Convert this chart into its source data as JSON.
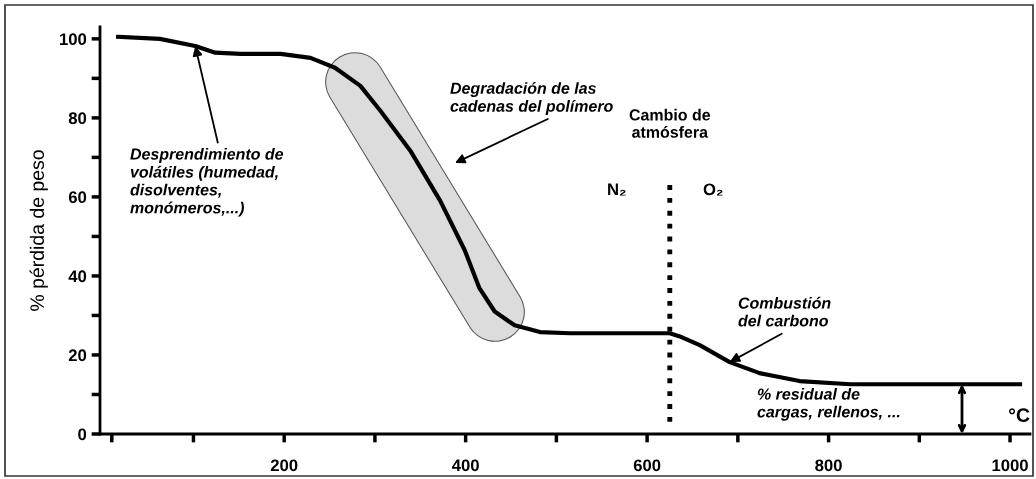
{
  "chart_data": {
    "type": "line",
    "xlabel": "°C",
    "ylabel": "% pérdida de peso",
    "x": [
      17,
      63,
      102,
      124,
      152,
      196,
      229,
      256,
      284,
      306,
      339,
      372,
      399,
      415,
      432,
      454,
      482,
      515,
      578,
      625,
      636,
      658,
      691,
      724,
      768,
      824,
      1011
    ],
    "series": [
      {
        "color": "#000000",
        "values": [
          100.5,
          100,
          98.2,
          96.5,
          96.2,
          96.2,
          95.2,
          92.7,
          88.1,
          81.8,
          71.7,
          59,
          46.5,
          37,
          31,
          27.5,
          25.8,
          25.5,
          25.5,
          25.5,
          24.7,
          22.5,
          18.2,
          15.4,
          13.4,
          12.6,
          12.6
        ]
      }
    ],
    "xlim": [
      -3,
      1022
    ],
    "ylim": [
      0,
      103
    ],
    "xticks": [
      {
        "value": 10,
        "label": null
      },
      {
        "value": 100,
        "label": null
      },
      200,
      {
        "value": 300,
        "label": null
      },
      400,
      {
        "value": 500,
        "label": null
      },
      600,
      {
        "value": 700,
        "label": null
      },
      800,
      {
        "value": 900,
        "label": null
      },
      1000
    ],
    "yticks": [
      0,
      {
        "value": 10,
        "label": null
      },
      20,
      {
        "value": 30,
        "label": null
      },
      40,
      {
        "value": 50,
        "label": null
      },
      60,
      {
        "value": 70,
        "label": null
      },
      80,
      {
        "value": 90,
        "label": null
      },
      100
    ],
    "ref_lines": [
      {
        "axis": "x",
        "value": 625,
        "label": "Cambio de\natmósfera",
        "line_style": "dotted",
        "color": "#000000"
      }
    ],
    "annotations": [
      {
        "text": "Desprendimiento de\nvolátiles (humedad,\ndisolventes,\nmonómeros,...)",
        "x": 102,
        "y": 98.2
      },
      "Degradación de las\ncadenas del polímero",
      {
        "text": "Combustión\ndel carbono",
        "x": 691,
        "y": 18.2
      },
      "% residual de\ncargas, rellenos, ...",
      "N₂",
      "O₂"
    ]
  }
}
